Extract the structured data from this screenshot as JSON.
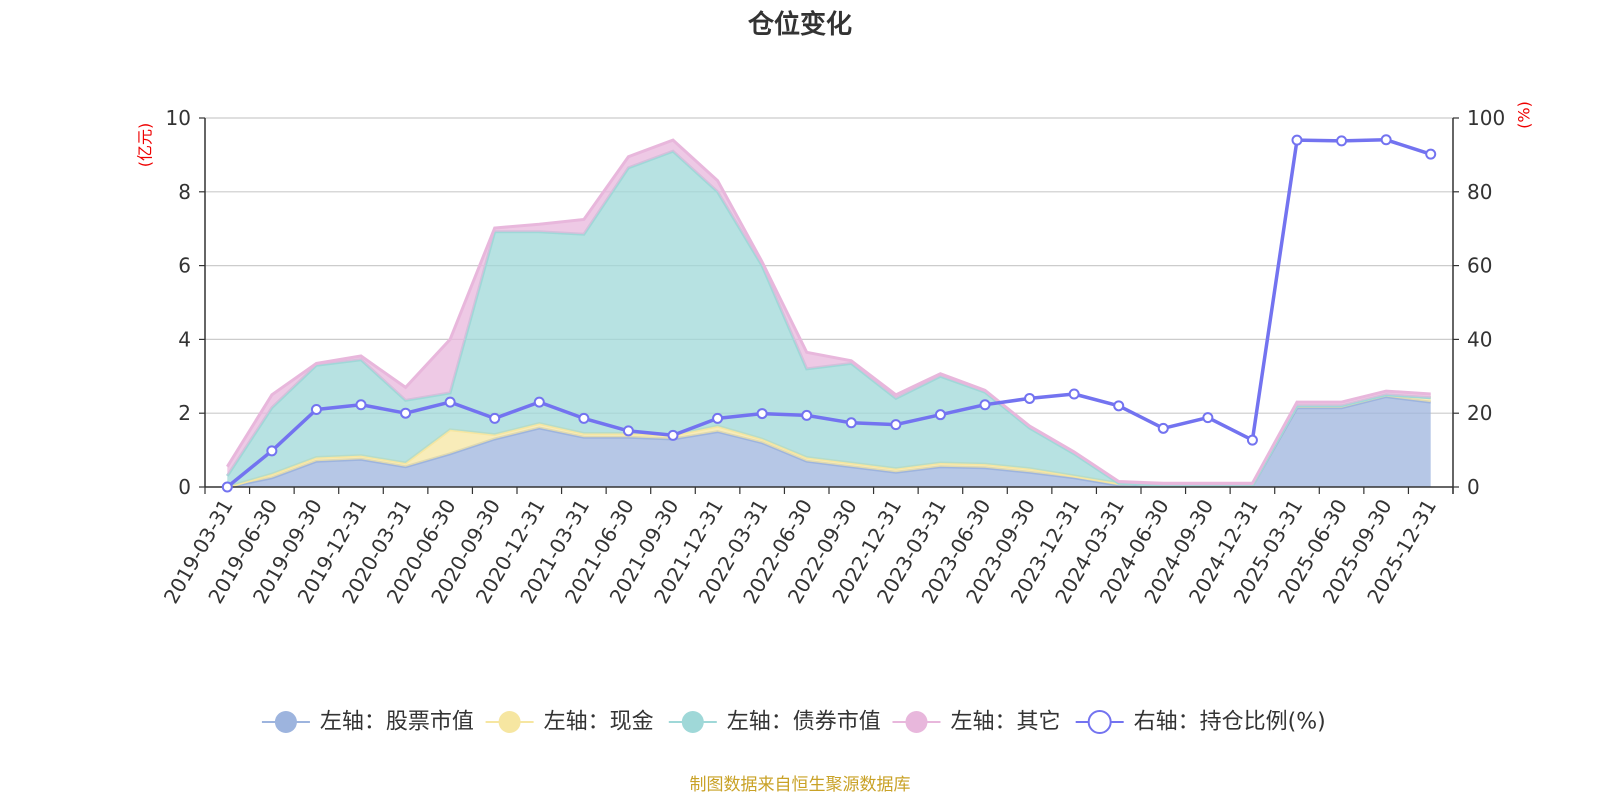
{
  "chart_data": {
    "type": "area",
    "title": "仓位变化",
    "source_note": "制图数据来自恒生聚源数据库",
    "left_axis": {
      "unit": "(亿元)",
      "min": 0,
      "max": 10,
      "ticks": [
        0,
        2,
        4,
        6,
        8,
        10
      ]
    },
    "right_axis": {
      "unit": "(%)",
      "min": 0,
      "max": 100,
      "ticks": [
        0,
        20,
        40,
        60,
        80,
        100
      ]
    },
    "categories": [
      "2019-03-31",
      "2019-06-30",
      "2019-09-30",
      "2019-12-31",
      "2020-03-31",
      "2020-06-30",
      "2020-09-30",
      "2020-12-31",
      "2021-03-31",
      "2021-06-30",
      "2021-09-30",
      "2021-12-31",
      "2022-03-31",
      "2022-06-30",
      "2022-09-30",
      "2022-12-31",
      "2023-03-31",
      "2023-06-30",
      "2023-09-30",
      "2023-12-31",
      "2024-03-31",
      "2024-06-30",
      "2024-09-30",
      "2024-12-31",
      "2025-03-31",
      "2025-06-30",
      "2025-09-30",
      "2025-12-31"
    ],
    "stacked_series": [
      {
        "name": "左轴：股票市值",
        "color": "#9db4de",
        "values": [
          0,
          0.25,
          0.7,
          0.75,
          0.55,
          0.9,
          1.3,
          1.6,
          1.35,
          1.35,
          1.3,
          1.5,
          1.2,
          0.7,
          0.55,
          0.4,
          0.55,
          0.52,
          0.4,
          0.25,
          0.05,
          0.03,
          0.03,
          0.03,
          2.15,
          2.15,
          2.45,
          2.3
        ]
      },
      {
        "name": "左轴：现金",
        "color": "#f6e6a1",
        "values": [
          0,
          0.1,
          0.1,
          0.1,
          0.1,
          0.65,
          0.12,
          0.12,
          0.1,
          0.1,
          0.1,
          0.15,
          0.1,
          0.1,
          0.1,
          0.1,
          0.1,
          0.1,
          0.1,
          0.05,
          0.05,
          0.02,
          0.02,
          0.02,
          0.05,
          0.05,
          0.05,
          0.12
        ]
      },
      {
        "name": "左轴：债券市值",
        "color": "#9fd8d8",
        "values": [
          0.3,
          1.8,
          2.5,
          2.6,
          1.7,
          1.0,
          5.5,
          5.2,
          5.4,
          7.2,
          7.7,
          6.35,
          4.7,
          2.4,
          2.7,
          1.9,
          2.35,
          1.95,
          1.1,
          0.6,
          0,
          0,
          0,
          0,
          0,
          0,
          0,
          0
        ]
      },
      {
        "name": "左轴：其它",
        "color": "#e8b7dc",
        "values": [
          0.25,
          0.35,
          0.05,
          0.1,
          0.35,
          1.45,
          0.1,
          0.2,
          0.4,
          0.3,
          0.3,
          0.3,
          0.1,
          0.45,
          0.07,
          0.1,
          0.07,
          0.05,
          0.05,
          0.05,
          0.05,
          0.05,
          0.05,
          0.05,
          0.1,
          0.1,
          0.1,
          0.1
        ]
      }
    ],
    "line_series": {
      "name": "右轴：持仓比例(%)",
      "axis": "right",
      "color": "#7373f0",
      "values": [
        0,
        9.8,
        21,
        22.3,
        20,
        23,
        18.6,
        23,
        18.6,
        15.2,
        14,
        18.6,
        19.9,
        19.4,
        17.4,
        16.9,
        19.6,
        22.3,
        24,
        25.2,
        22,
        15.9,
        18.8,
        12.7,
        94,
        93.8,
        94.1,
        90.2
      ]
    }
  }
}
